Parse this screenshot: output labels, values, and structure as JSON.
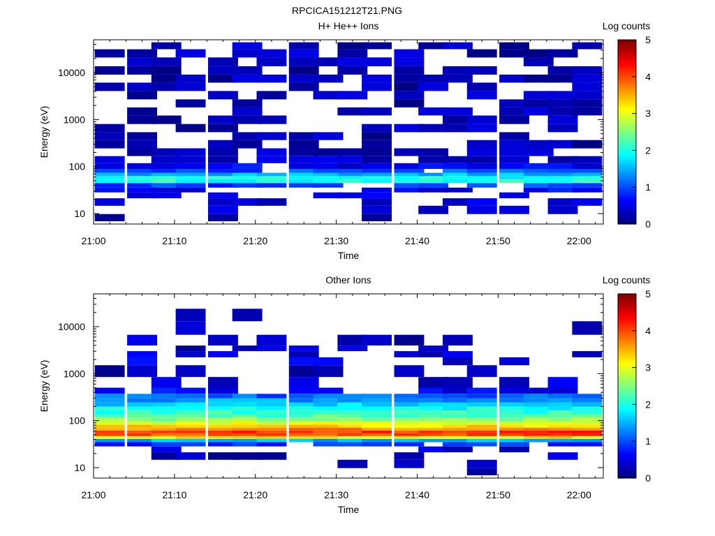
{
  "figure_title": "RPCICA151212T21.PNG",
  "chart_data": [
    {
      "type": "heatmap",
      "title": "H+ He++ Ions",
      "xlabel": "Time",
      "ylabel": "Energy (eV)",
      "x_ticks": [
        "21:00",
        "21:10",
        "21:20",
        "21:30",
        "21:40",
        "21:50",
        "22:00"
      ],
      "xlim": [
        "21:00",
        "22:03"
      ],
      "y_scale": "log",
      "ylim": [
        6,
        50000
      ],
      "y_ticks": [
        "10",
        "100",
        "1000",
        "10000"
      ],
      "colorbar": {
        "label": "Log counts",
        "range": [
          0,
          5
        ],
        "ticks": [
          "0",
          "1",
          "2",
          "3",
          "4",
          "5"
        ]
      },
      "time_bins": [
        "21:02",
        "21:06",
        "21:09",
        "21:12",
        "21:16",
        "21:19",
        "21:22",
        "21:26",
        "21:29",
        "21:32",
        "21:35",
        "21:39",
        "21:42",
        "21:45",
        "21:48",
        "21:52",
        "21:55",
        "21:58",
        "22:01"
      ],
      "profile": [
        {
          "energy_eV": 8,
          "log_counts": 0.2,
          "fill": 0.3
        },
        {
          "energy_eV": 12,
          "log_counts": 0.3,
          "fill": 0.35
        },
        {
          "energy_eV": 18,
          "log_counts": 0.35,
          "fill": 0.4
        },
        {
          "energy_eV": 25,
          "log_counts": 0.45,
          "fill": 0.45
        },
        {
          "energy_eV": 32,
          "log_counts": 0.6,
          "fill": 0.6
        },
        {
          "energy_eV": 40,
          "log_counts": 0.9,
          "fill": 0.75
        },
        {
          "energy_eV": 50,
          "log_counts": 2.0,
          "fill": 1.0
        },
        {
          "energy_eV": 58,
          "log_counts": 1.9,
          "fill": 1.0
        },
        {
          "energy_eV": 68,
          "log_counts": 1.5,
          "fill": 1.0
        },
        {
          "energy_eV": 80,
          "log_counts": 1.0,
          "fill": 0.95
        },
        {
          "energy_eV": 100,
          "log_counts": 0.55,
          "fill": 0.85
        },
        {
          "energy_eV": 140,
          "log_counts": 0.35,
          "fill": 0.75
        },
        {
          "energy_eV": 200,
          "log_counts": 0.3,
          "fill": 0.7
        },
        {
          "energy_eV": 300,
          "log_counts": 0.25,
          "fill": 0.6
        },
        {
          "energy_eV": 450,
          "log_counts": 0.25,
          "fill": 0.55
        },
        {
          "energy_eV": 650,
          "log_counts": 0.25,
          "fill": 0.55
        },
        {
          "energy_eV": 1000,
          "log_counts": 0.25,
          "fill": 0.6
        },
        {
          "energy_eV": 1500,
          "log_counts": 0.25,
          "fill": 0.6
        },
        {
          "energy_eV": 2200,
          "log_counts": 0.25,
          "fill": 0.6
        },
        {
          "energy_eV": 3300,
          "log_counts": 0.25,
          "fill": 0.6
        },
        {
          "energy_eV": 5000,
          "log_counts": 0.25,
          "fill": 0.6
        },
        {
          "energy_eV": 7500,
          "log_counts": 0.25,
          "fill": 0.6
        },
        {
          "energy_eV": 11000,
          "log_counts": 0.25,
          "fill": 0.6
        },
        {
          "energy_eV": 17000,
          "log_counts": 0.25,
          "fill": 0.6
        },
        {
          "energy_eV": 26000,
          "log_counts": 0.25,
          "fill": 0.6
        },
        {
          "energy_eV": 38000,
          "log_counts": 0.25,
          "fill": 0.55
        }
      ]
    },
    {
      "type": "heatmap",
      "title": "Other Ions",
      "xlabel": "Time",
      "ylabel": "Energy (eV)",
      "x_ticks": [
        "21:00",
        "21:10",
        "21:20",
        "21:30",
        "21:40",
        "21:50",
        "22:00"
      ],
      "xlim": [
        "21:00",
        "22:03"
      ],
      "y_scale": "log",
      "ylim": [
        6,
        50000
      ],
      "y_ticks": [
        "10",
        "100",
        "1000",
        "10000"
      ],
      "colorbar": {
        "label": "Log counts",
        "range": [
          0,
          5
        ],
        "ticks": [
          "0",
          "1",
          "2",
          "3",
          "4",
          "5"
        ]
      },
      "time_bins": [
        "21:02",
        "21:06",
        "21:09",
        "21:12",
        "21:16",
        "21:19",
        "21:22",
        "21:26",
        "21:29",
        "21:32",
        "21:35",
        "21:39",
        "21:42",
        "21:45",
        "21:48",
        "21:52",
        "21:55",
        "21:58",
        "22:01"
      ],
      "profile": [
        {
          "energy_eV": 8,
          "log_counts": 0.2,
          "fill": 0.15
        },
        {
          "energy_eV": 12,
          "log_counts": 0.25,
          "fill": 0.2
        },
        {
          "energy_eV": 18,
          "log_counts": 0.3,
          "fill": 0.3
        },
        {
          "energy_eV": 25,
          "log_counts": 0.4,
          "fill": 0.35
        },
        {
          "energy_eV": 32,
          "log_counts": 0.8,
          "fill": 0.8
        },
        {
          "energy_eV": 38,
          "log_counts": 1.5,
          "fill": 1.0
        },
        {
          "energy_eV": 44,
          "log_counts": 3.2,
          "fill": 1.0
        },
        {
          "energy_eV": 50,
          "log_counts": 4.0,
          "fill": 1.0
        },
        {
          "energy_eV": 58,
          "log_counts": 4.1,
          "fill": 1.0
        },
        {
          "energy_eV": 66,
          "log_counts": 3.7,
          "fill": 1.0
        },
        {
          "energy_eV": 76,
          "log_counts": 3.3,
          "fill": 1.0
        },
        {
          "energy_eV": 88,
          "log_counts": 3.0,
          "fill": 1.0
        },
        {
          "energy_eV": 105,
          "log_counts": 2.6,
          "fill": 1.0
        },
        {
          "energy_eV": 125,
          "log_counts": 2.3,
          "fill": 1.0
        },
        {
          "energy_eV": 150,
          "log_counts": 2.1,
          "fill": 1.0
        },
        {
          "energy_eV": 180,
          "log_counts": 1.9,
          "fill": 1.0
        },
        {
          "energy_eV": 220,
          "log_counts": 1.7,
          "fill": 1.0
        },
        {
          "energy_eV": 270,
          "log_counts": 1.4,
          "fill": 1.0
        },
        {
          "energy_eV": 330,
          "log_counts": 1.1,
          "fill": 0.95
        },
        {
          "energy_eV": 420,
          "log_counts": 0.6,
          "fill": 0.7
        },
        {
          "energy_eV": 600,
          "log_counts": 0.4,
          "fill": 0.35
        },
        {
          "energy_eV": 1200,
          "log_counts": 0.3,
          "fill": 0.35
        },
        {
          "energy_eV": 1900,
          "log_counts": 0.5,
          "fill": 0.4
        },
        {
          "energy_eV": 2600,
          "log_counts": 0.4,
          "fill": 0.4
        },
        {
          "energy_eV": 3500,
          "log_counts": 0.3,
          "fill": 0.35
        },
        {
          "energy_eV": 4500,
          "log_counts": 0.3,
          "fill": 0.3
        },
        {
          "energy_eV": 10000,
          "log_counts": 0.25,
          "fill": 0.12
        },
        {
          "energy_eV": 17000,
          "log_counts": 0.25,
          "fill": 0.06
        },
        {
          "energy_eV": 34000,
          "log_counts": 0.25,
          "fill": 0.03
        }
      ]
    }
  ]
}
